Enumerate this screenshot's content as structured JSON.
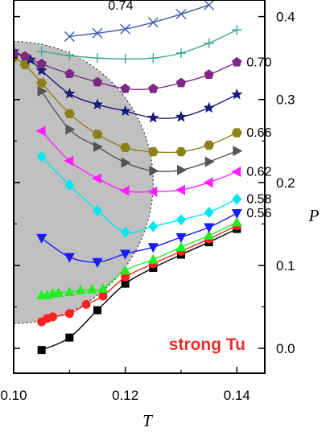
{
  "chart_data": {
    "type": "line",
    "xlabel": "T",
    "ylabel": "P",
    "xlim": [
      0.1,
      0.145
    ],
    "ylim": [
      -0.03,
      0.42
    ],
    "xticks": [
      "0.10",
      "0.12",
      "0.14"
    ],
    "yticks": [
      "0.0",
      "0.1",
      "0.2",
      "0.3",
      "0.4"
    ],
    "annotation": "strong Tu",
    "region": {
      "label": "",
      "fill": "#c0c0c0",
      "shape": "quarter-disc",
      "center": [
        0.1,
        0.2
      ],
      "radius_x": 0.025,
      "radius_y": 0.17
    },
    "series": [
      {
        "name": "0.74",
        "color": "#3a5aa8",
        "marker": "x",
        "x": [
          0.11,
          0.115,
          0.12,
          0.125,
          0.13,
          0.135
        ],
        "y": [
          0.376,
          0.38,
          0.385,
          0.393,
          0.403,
          0.414
        ]
      },
      {
        "name": "",
        "color": "#3aa88e",
        "marker": "plus",
        "x": [
          0.105,
          0.11,
          0.115,
          0.12,
          0.125,
          0.13,
          0.135,
          0.14
        ],
        "y": [
          0.358,
          0.353,
          0.35,
          0.349,
          0.35,
          0.356,
          0.368,
          0.384
        ]
      },
      {
        "name": "0.70",
        "color": "#7d2884",
        "marker": "pentagon",
        "x": [
          0.1,
          0.102,
          0.105,
          0.11,
          0.115,
          0.12,
          0.125,
          0.13,
          0.135,
          0.14
        ],
        "y": [
          0.355,
          0.352,
          0.343,
          0.331,
          0.321,
          0.313,
          0.313,
          0.32,
          0.33,
          0.345
        ]
      },
      {
        "name": "",
        "color": "#1a1a78",
        "marker": "star",
        "x": [
          0.1,
          0.103,
          0.105,
          0.11,
          0.115,
          0.12,
          0.125,
          0.13,
          0.135,
          0.14
        ],
        "y": [
          0.358,
          0.348,
          0.335,
          0.307,
          0.294,
          0.286,
          0.278,
          0.279,
          0.29,
          0.306
        ]
      },
      {
        "name": "0.66",
        "color": "#8b8117",
        "marker": "hexagon",
        "x": [
          0.1,
          0.102,
          0.105,
          0.11,
          0.115,
          0.12,
          0.125,
          0.13,
          0.135,
          0.14
        ],
        "y": [
          0.351,
          0.342,
          0.32,
          0.283,
          0.258,
          0.242,
          0.237,
          0.237,
          0.245,
          0.26
        ]
      },
      {
        "name": "",
        "color": "#555555",
        "marker": "triangle-right",
        "x": [
          0.105,
          0.11,
          0.115,
          0.12,
          0.125,
          0.13,
          0.135,
          0.14
        ],
        "y": [
          0.31,
          0.264,
          0.243,
          0.224,
          0.214,
          0.215,
          0.225,
          0.238
        ]
      },
      {
        "name": "0.62",
        "color": "#ff22ff",
        "marker": "triangle-left",
        "x": [
          0.105,
          0.11,
          0.115,
          0.12,
          0.125,
          0.13,
          0.135,
          0.14
        ],
        "y": [
          0.262,
          0.226,
          0.205,
          0.19,
          0.189,
          0.191,
          0.2,
          0.213
        ]
      },
      {
        "name": "0.58",
        "color": "#00e5ee",
        "marker": "diamond",
        "x": [
          0.105,
          0.11,
          0.115,
          0.12,
          0.125,
          0.13,
          0.135,
          0.14
        ],
        "y": [
          0.231,
          0.197,
          0.166,
          0.14,
          0.147,
          0.155,
          0.164,
          0.18
        ]
      },
      {
        "name": "0.56",
        "color": "#1a1aff",
        "marker": "triangle-down",
        "x": [
          0.105,
          0.11,
          0.115,
          0.12,
          0.125,
          0.13,
          0.135,
          0.14
        ],
        "y": [
          0.133,
          0.11,
          0.104,
          0.114,
          0.122,
          0.134,
          0.146,
          0.163
        ]
      },
      {
        "name": "",
        "color": "#22ee22",
        "marker": "triangle-up",
        "x": [
          0.105,
          0.106,
          0.107,
          0.108,
          0.11,
          0.112,
          0.114,
          0.116,
          0.12,
          0.125,
          0.13,
          0.135,
          0.14
        ],
        "y": [
          0.064,
          0.064,
          0.066,
          0.067,
          0.068,
          0.07,
          0.071,
          0.072,
          0.094,
          0.107,
          0.122,
          0.136,
          0.152
        ]
      },
      {
        "name": "",
        "color": "#ff2020",
        "marker": "circle",
        "x": [
          0.105,
          0.106,
          0.107,
          0.11,
          0.113,
          0.116,
          0.12,
          0.125,
          0.13,
          0.135,
          0.14
        ],
        "y": [
          0.032,
          0.036,
          0.038,
          0.042,
          0.053,
          0.063,
          0.086,
          0.102,
          0.117,
          0.132,
          0.148
        ]
      },
      {
        "name": "",
        "color": "#000000",
        "marker": "square",
        "x": [
          0.105,
          0.11,
          0.115,
          0.12,
          0.125,
          0.13,
          0.135,
          0.14
        ],
        "y": [
          -0.002,
          0.013,
          0.046,
          0.078,
          0.097,
          0.113,
          0.128,
          0.144
        ]
      }
    ]
  }
}
